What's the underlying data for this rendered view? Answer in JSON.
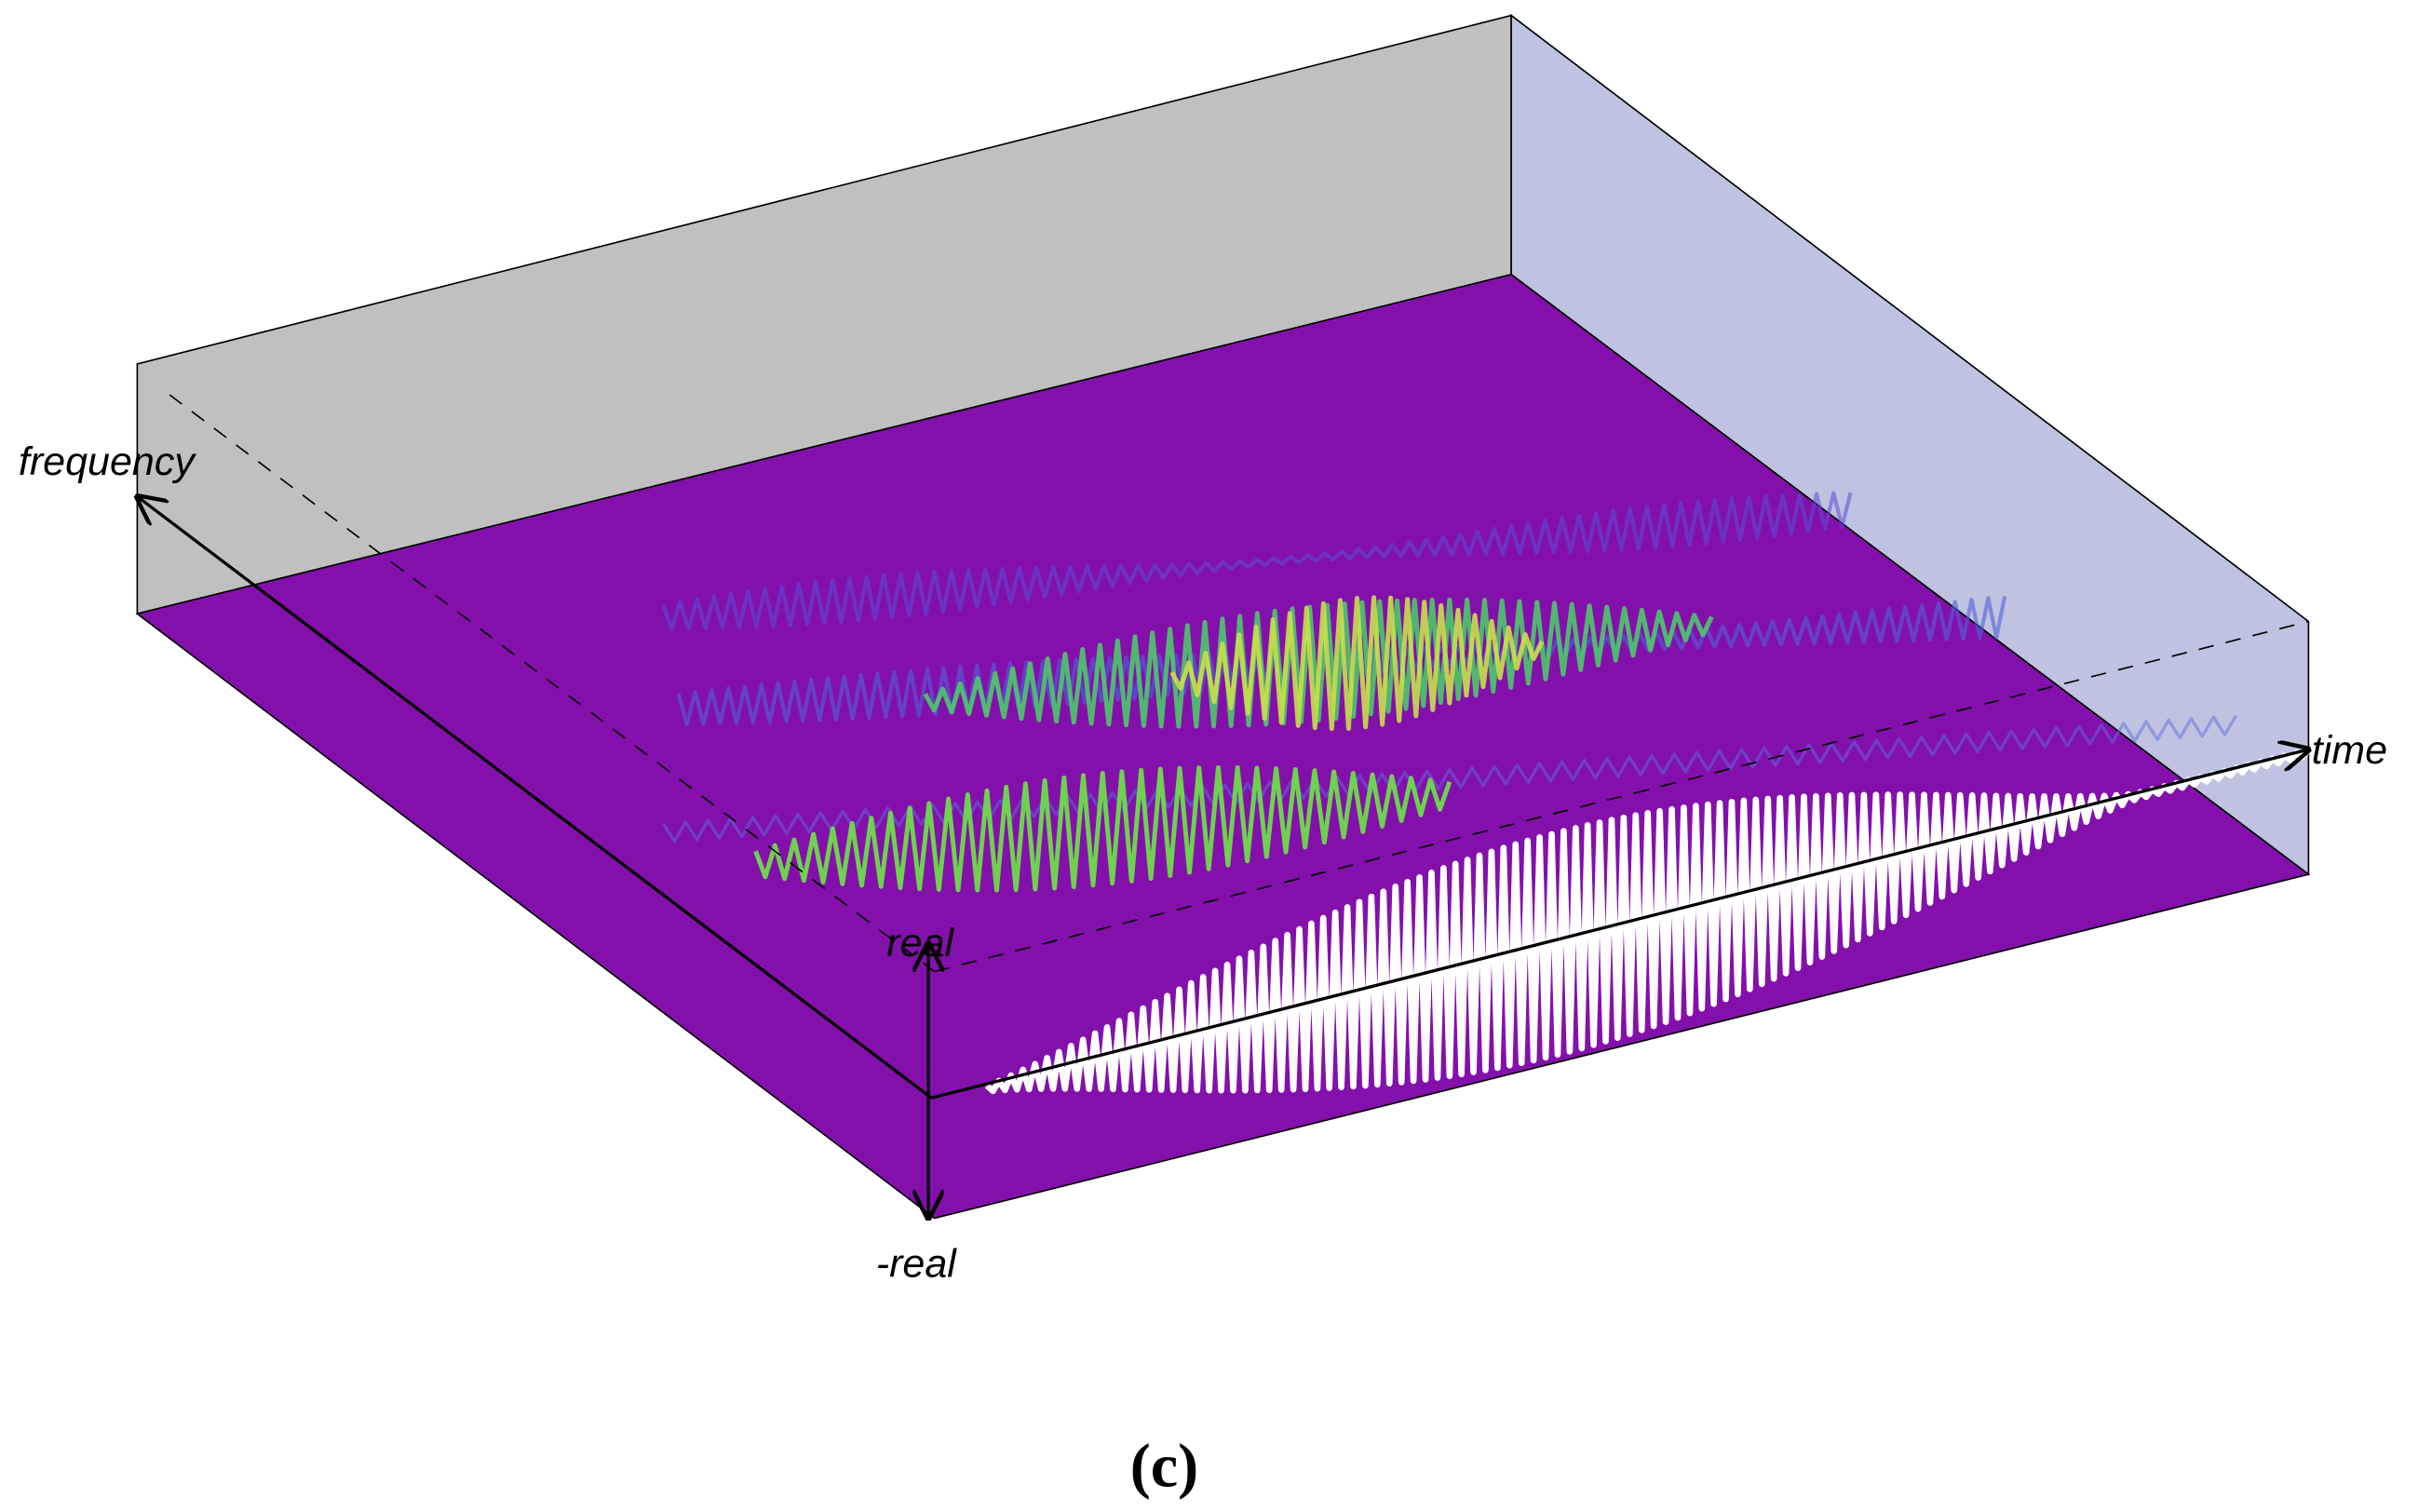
{
  "axes": {
    "frequency": "frequency",
    "time": "time",
    "real": "real",
    "neg_real": "-real"
  },
  "caption": "(c)"
}
